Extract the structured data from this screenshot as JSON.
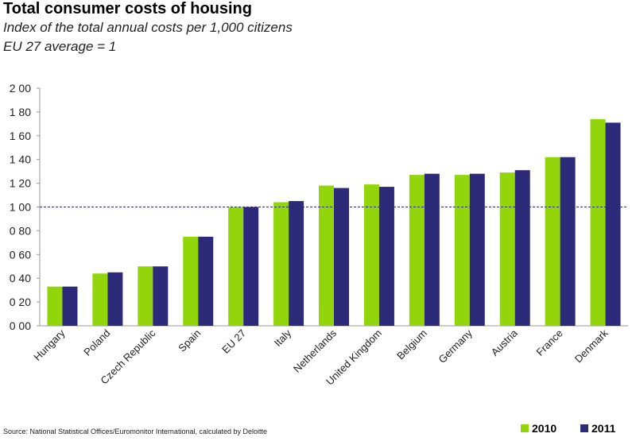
{
  "title": "Total consumer costs of housing",
  "subtitle1": "Index of the total annual costs per 1,000 citizens",
  "subtitle2": "EU 27 average = 1",
  "source": "Source: National Statistical Offices/Euromonitor International, calculated by Deloitte",
  "colors": {
    "2010": "#92d50a",
    "2011": "#2e2a7a",
    "reference": "#2e2a7a"
  },
  "chart_data": {
    "type": "bar",
    "categories": [
      "Hungary",
      "Poland",
      "Czech Republic",
      "Spain",
      "EU 27",
      "Italy",
      "Netherlands",
      "United Kingdom",
      "Belgium",
      "Germany",
      "Austria",
      "France",
      "Denmark"
    ],
    "series": [
      {
        "name": "2010",
        "values": [
          0.33,
          0.44,
          0.5,
          0.75,
          1.0,
          1.04,
          1.18,
          1.19,
          1.27,
          1.27,
          1.29,
          1.42,
          1.74
        ]
      },
      {
        "name": "2011",
        "values": [
          0.33,
          0.45,
          0.5,
          0.75,
          1.0,
          1.05,
          1.16,
          1.17,
          1.28,
          1.28,
          1.31,
          1.42,
          1.71
        ]
      }
    ],
    "ytick_labels": [
      "0 00",
      "0 20",
      "0 40",
      "0 60",
      "0 80",
      "1 00",
      "1 20",
      "1 40",
      "1 60",
      "1 80",
      "2 00"
    ],
    "ylim": [
      0,
      2
    ],
    "reference_line": 1,
    "grid": false,
    "legend_position": "bottom-right"
  }
}
